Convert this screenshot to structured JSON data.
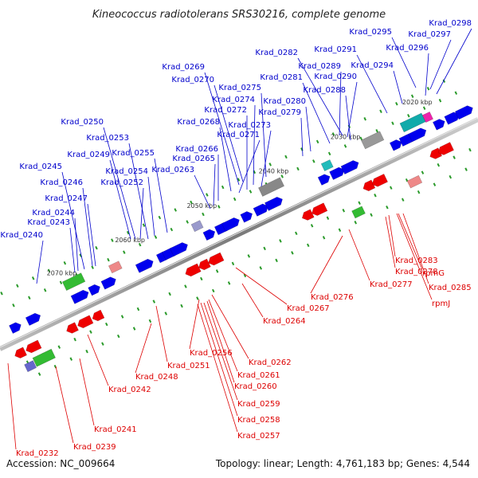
{
  "title": "Kineococcus radiotolerans SRS30216, complete genome",
  "footer": {
    "accession": "Accession: NC_009664",
    "summary": "Topology: linear; Length: 4,761,183 bp; Genes: 4,544"
  },
  "colors": {
    "forward_label": "#0000cc",
    "reverse_label": "#dd0000",
    "forward_gene": "#0000ee",
    "reverse_gene": "#ee0000",
    "backbone": "#888888"
  },
  "ticks": [
    "2020 kbp",
    "2030 kbp",
    "2040 kbp",
    "2050 kbp",
    "2060 kbp",
    "2070 kbp"
  ],
  "forward_labels": [
    "Krad_0298",
    "Krad_0295",
    "Krad_0297",
    "Krad_0296",
    "Krad_0291",
    "Krad_0294",
    "Krad_0282",
    "Krad_0289",
    "Krad_0290",
    "Krad_0281",
    "Krad_0288",
    "Krad_0269",
    "Krad_0270",
    "Krad_0275",
    "Krad_0274",
    "Krad_0280",
    "Krad_0272",
    "Krad_0279",
    "Krad_0268",
    "Krad_0273",
    "Krad_0271",
    "Krad_0250",
    "Krad_0253",
    "Krad_0266",
    "Krad_0249",
    "Krad_0255",
    "Krad_0265",
    "Krad_0245",
    "Krad_0254",
    "Krad_0263",
    "Krad_0246",
    "Krad_0252",
    "Krad_0247",
    "Krad_0244",
    "Krad_0243",
    "Krad_0240"
  ],
  "reverse_labels": [
    "Krad_0283",
    "rpmG",
    "Krad_0278",
    "Krad_0285",
    "Krad_0277",
    "rpmJ",
    "Krad_0276",
    "Krad_0267",
    "Krad_0264",
    "Krad_0256",
    "Krad_0251",
    "Krad_0262",
    "Krad_0248",
    "Krad_0261",
    "Krad_0260",
    "Krad_0242",
    "Krad_0259",
    "Krad_0258",
    "Krad_0241",
    "Krad_0257",
    "Krad_0239",
    "Krad_0232"
  ]
}
